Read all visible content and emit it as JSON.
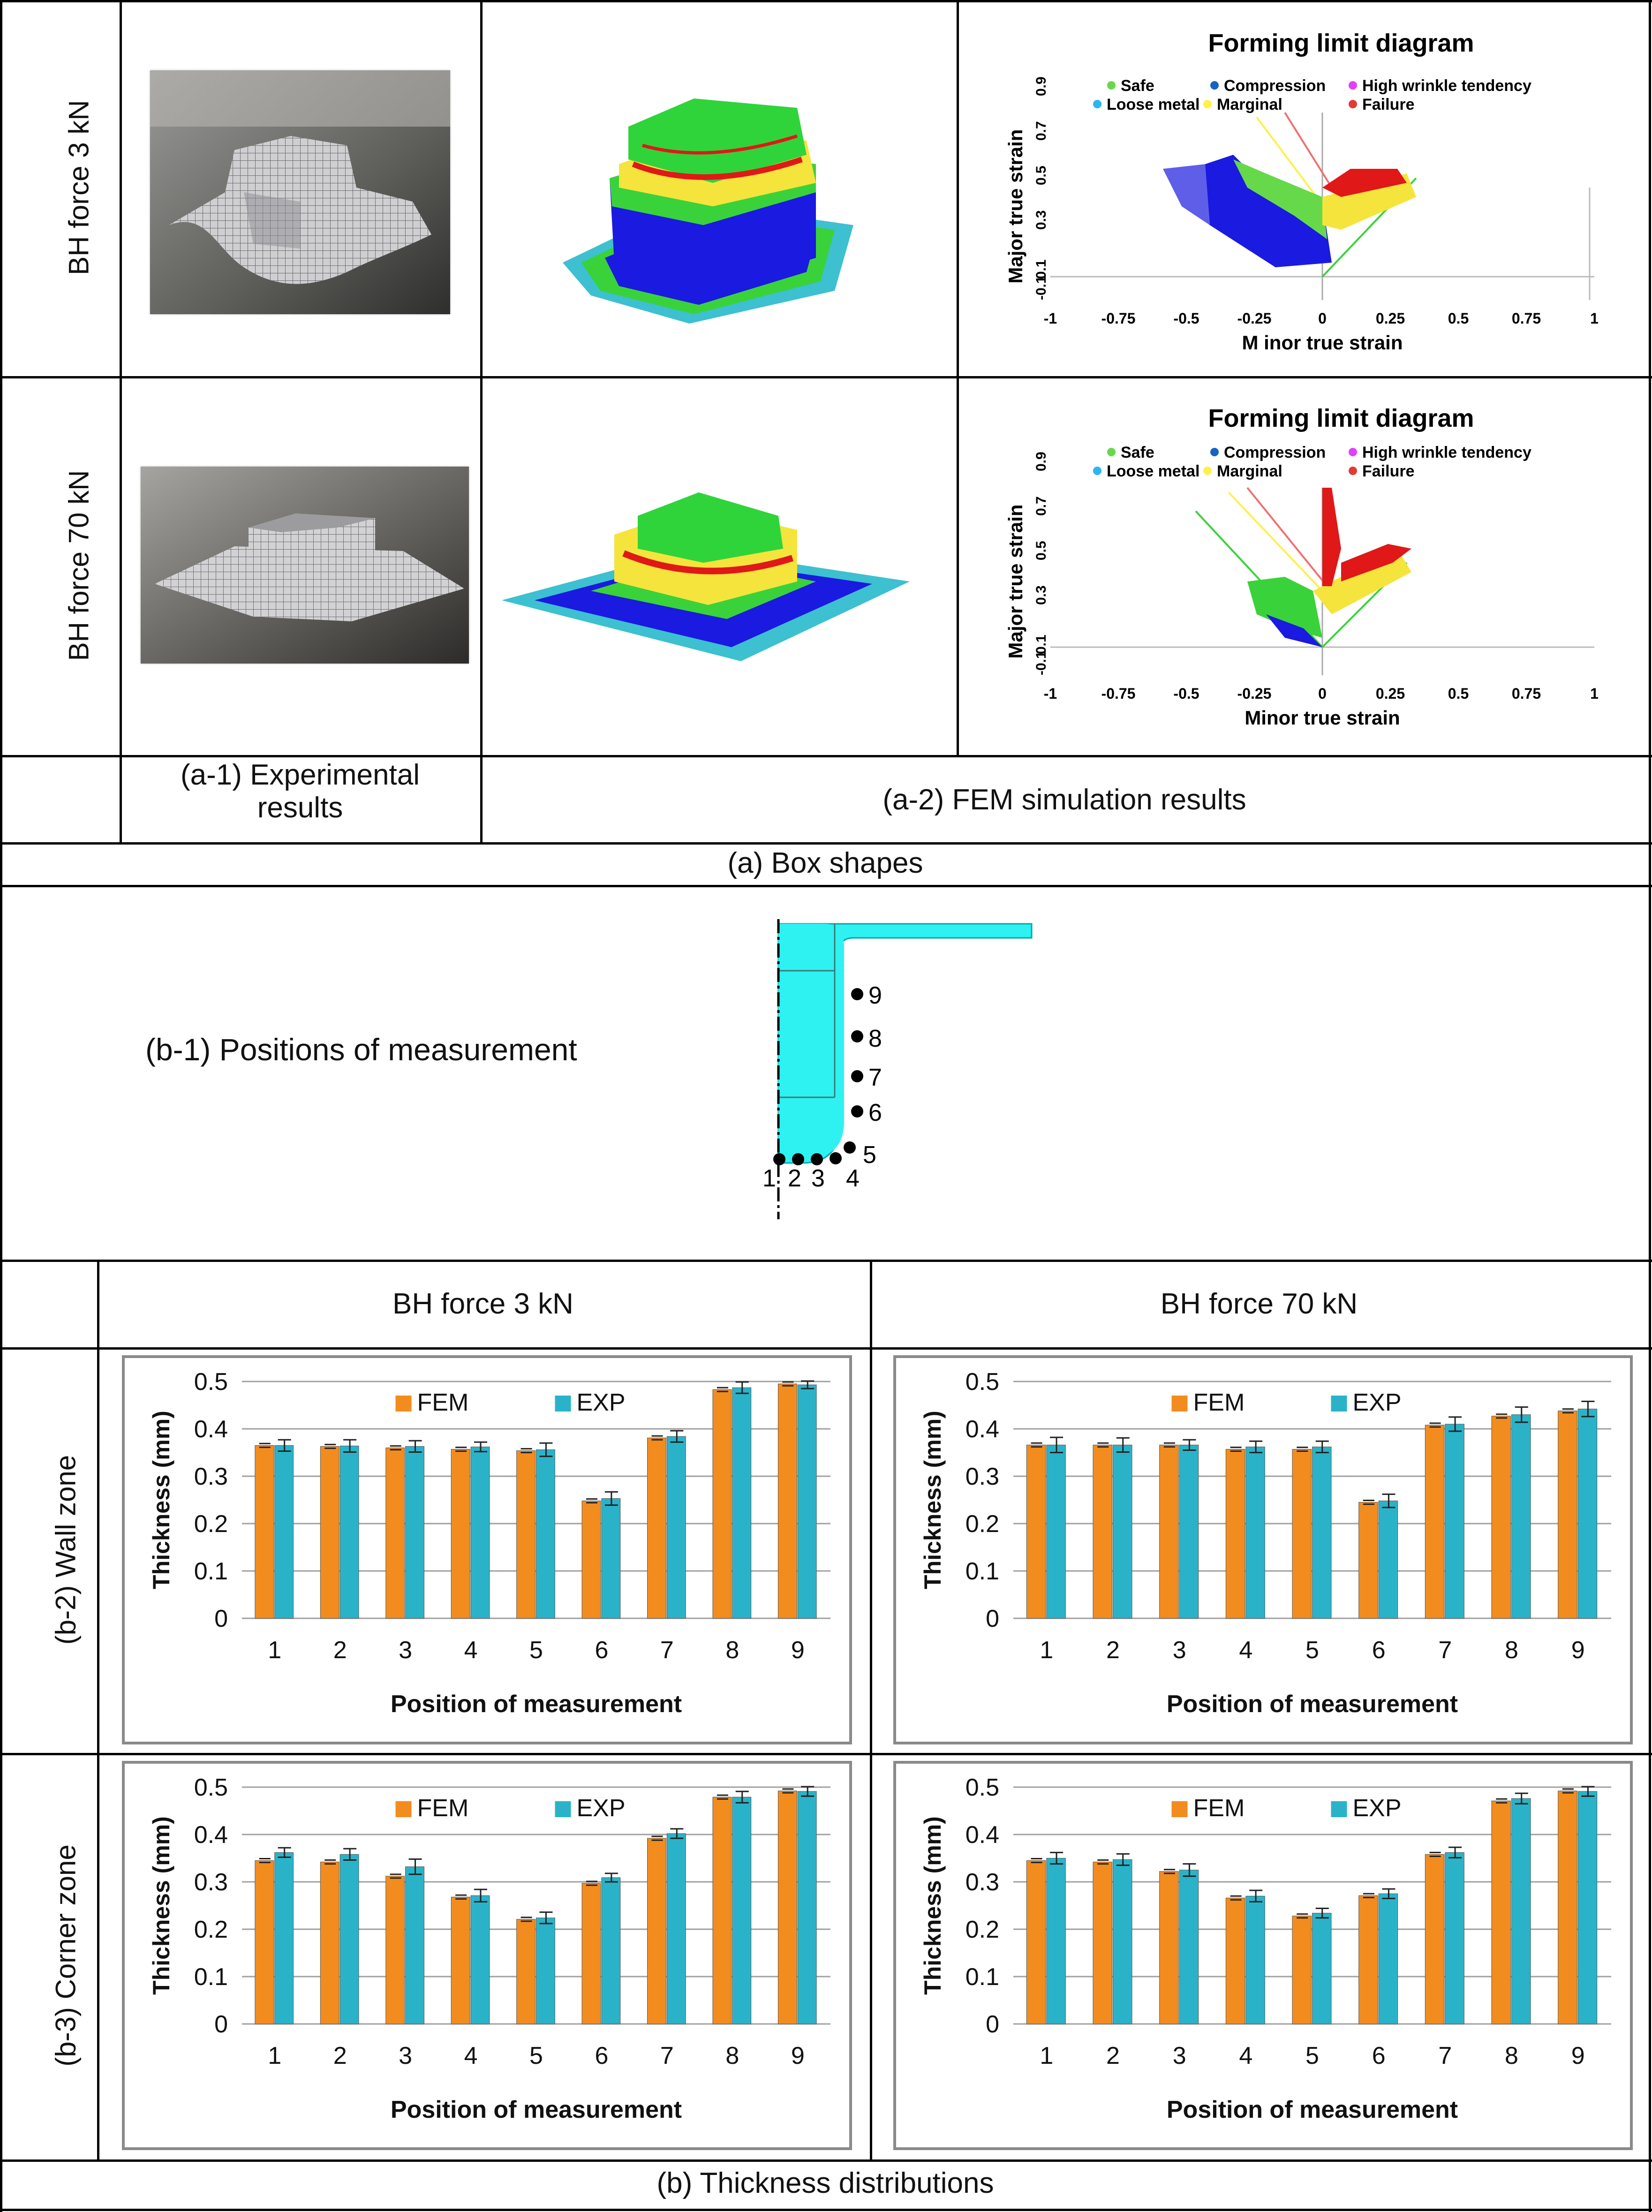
{
  "section_a": {
    "row1_label": "BH force 3 kN",
    "row2_label": "BH  force 70 kN",
    "caption_exp": "(a-1) Experimental results",
    "caption_exp_line1": "(a-1) Experimental",
    "caption_exp_line2": "results",
    "caption_fem": "(a-2) FEM simulation results",
    "title": "(a)   Box shapes"
  },
  "fld": {
    "title": "Forming limit diagram",
    "xlabel_row1": "M inor true strain",
    "xlabel_row2": "Minor true strain",
    "ylabel": "Major true strain",
    "legend": [
      "Safe",
      "Compression",
      "High wrinkle tendency",
      "Loose metal",
      "Marginal",
      "Failure"
    ],
    "legend_colors": [
      "#66d94a",
      "#1565c0",
      "#e040fb",
      "#29b6f6",
      "#fff04a",
      "#e53935"
    ],
    "xticks": [
      "-1",
      "-0.75",
      "-0.5",
      "-0.25",
      "0",
      "0.25",
      "0.5",
      "0.75",
      "1"
    ],
    "yticks": [
      "-0.1",
      "0.1",
      "0.3",
      "0.5",
      "0.7",
      "0.9"
    ]
  },
  "section_b": {
    "positions_label": "(b-1) Positions of measurement",
    "position_numbers": [
      "1",
      "2",
      "3",
      "4",
      "5",
      "6",
      "7",
      "8",
      "9"
    ],
    "col1_header": "BH force 3 kN",
    "col2_header": "BH force 70 kN",
    "row_wall": "(b-2) Wall zone",
    "row_corner": "(b-3) Corner zone",
    "title": "(b)   Thickness distributions"
  },
  "chart_data": [
    {
      "type": "bar",
      "id": "wall_3kN",
      "categories": [
        "1",
        "2",
        "3",
        "4",
        "5",
        "6",
        "7",
        "8",
        "9"
      ],
      "series": [
        {
          "name": "FEM",
          "values": [
            0.365,
            0.363,
            0.36,
            0.357,
            0.354,
            0.248,
            0.381,
            0.483,
            0.495
          ]
        },
        {
          "name": "EXP",
          "values": [
            0.365,
            0.364,
            0.363,
            0.362,
            0.356,
            0.253,
            0.384,
            0.487,
            0.493
          ]
        }
      ],
      "error": [
        0.012,
        0.013,
        0.012,
        0.01,
        0.014,
        0.014,
        0.012,
        0.012,
        0.008
      ],
      "xlabel": "Position of measurement",
      "ylabel": "Thickness (mm)",
      "yticks": [
        "0",
        "0.1",
        "0.2",
        "0.3",
        "0.4",
        "0.5"
      ],
      "ylim": [
        0,
        0.5
      ]
    },
    {
      "type": "bar",
      "id": "wall_70kN",
      "categories": [
        "1",
        "2",
        "3",
        "4",
        "5",
        "6",
        "7",
        "8",
        "9"
      ],
      "series": [
        {
          "name": "FEM",
          "values": [
            0.366,
            0.366,
            0.366,
            0.357,
            0.357,
            0.245,
            0.408,
            0.427,
            0.438
          ]
        },
        {
          "name": "EXP",
          "values": [
            0.366,
            0.366,
            0.366,
            0.362,
            0.362,
            0.248,
            0.41,
            0.43,
            0.442
          ]
        }
      ],
      "error": [
        0.016,
        0.015,
        0.011,
        0.012,
        0.012,
        0.014,
        0.015,
        0.016,
        0.016
      ],
      "xlabel": "Position of measurement",
      "ylabel": "Thickness (mm)",
      "yticks": [
        "0",
        "0.1",
        "0.2",
        "0.3",
        "0.4",
        "0.5"
      ],
      "ylim": [
        0,
        0.5
      ]
    },
    {
      "type": "bar",
      "id": "corner_3kN",
      "categories": [
        "1",
        "2",
        "3",
        "4",
        "5",
        "6",
        "7",
        "8",
        "9"
      ],
      "series": [
        {
          "name": "FEM",
          "values": [
            0.345,
            0.342,
            0.312,
            0.268,
            0.221,
            0.297,
            0.392,
            0.479,
            0.492
          ]
        },
        {
          "name": "EXP",
          "values": [
            0.362,
            0.358,
            0.332,
            0.271,
            0.224,
            0.309,
            0.402,
            0.479,
            0.491
          ]
        }
      ],
      "error": [
        0.01,
        0.012,
        0.016,
        0.013,
        0.012,
        0.009,
        0.01,
        0.012,
        0.01
      ],
      "xlabel": "Position of measurement",
      "ylabel": "Thickness (mm)",
      "yticks": [
        "0",
        "0.1",
        "0.2",
        "0.3",
        "0.4",
        "0.5"
      ],
      "ylim": [
        0,
        0.5
      ]
    },
    {
      "type": "bar",
      "id": "corner_70kN",
      "categories": [
        "1",
        "2",
        "3",
        "4",
        "5",
        "6",
        "7",
        "8",
        "9"
      ],
      "series": [
        {
          "name": "FEM",
          "values": [
            0.345,
            0.342,
            0.322,
            0.266,
            0.228,
            0.271,
            0.358,
            0.471,
            0.492
          ]
        },
        {
          "name": "EXP",
          "values": [
            0.35,
            0.347,
            0.325,
            0.27,
            0.234,
            0.275,
            0.362,
            0.476,
            0.491
          ]
        }
      ],
      "error": [
        0.012,
        0.012,
        0.013,
        0.012,
        0.01,
        0.01,
        0.011,
        0.011,
        0.01
      ],
      "xlabel": "Position of measurement",
      "ylabel": "Thickness (mm)",
      "yticks": [
        "0",
        "0.1",
        "0.2",
        "0.3",
        "0.4",
        "0.5"
      ],
      "ylim": [
        0,
        0.5
      ]
    }
  ],
  "colors": {
    "fem": "#f28c1e",
    "exp": "#2ab3c8",
    "grid": "#a0a0a0"
  }
}
